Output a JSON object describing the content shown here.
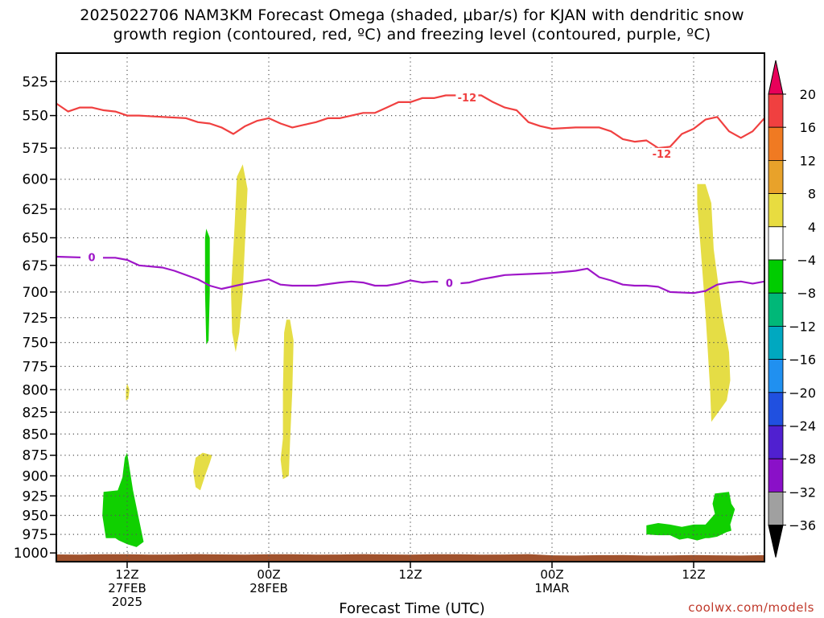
{
  "title_line1": "2025022706 NAM3KM Forecast Omega (shaded, μbar/s) for KJAN with dendritic snow",
  "title_line2": "growth region (contoured, red, ºC) and freezing level (contoured, purple, ºC)",
  "watermark": "coolwx.com/models",
  "chart_data": {
    "type": "time-height cross section",
    "xlabel": "Forecast Time (UTC)",
    "x_ticks": [
      {
        "hour": 6,
        "label": "12Z",
        "sub1": "27FEB",
        "sub2": "2025"
      },
      {
        "hour": 18,
        "label": "00Z",
        "sub1": "28FEB",
        "sub2": ""
      },
      {
        "hour": 30,
        "label": "12Z",
        "sub1": "",
        "sub2": ""
      },
      {
        "hour": 42,
        "label": "00Z",
        "sub1": "1MAR",
        "sub2": ""
      },
      {
        "hour": 54,
        "label": "12Z",
        "sub1": "",
        "sub2": ""
      }
    ],
    "xlim": [
      0,
      60
    ],
    "y_ticks": [
      525,
      550,
      575,
      600,
      625,
      650,
      675,
      700,
      725,
      750,
      775,
      800,
      825,
      850,
      875,
      900,
      925,
      950,
      975,
      1000
    ],
    "ylim_hPa": [
      505,
      1012
    ],
    "y_scale": "log-pressure",
    "grid": "dotted",
    "colorbar": {
      "labels": [
        "20",
        "16",
        "12",
        "8",
        "4",
        "−4",
        "−8",
        "−12",
        "−16",
        "−20",
        "−24",
        "−28",
        "−32",
        "−36"
      ],
      "colors": [
        "#e8005a",
        "#f04040",
        "#f07a22",
        "#e8a22a",
        "#e8dc40",
        "#ffffff",
        "#00cc00",
        "#00b878",
        "#00a8c0",
        "#2090f0",
        "#2050e0",
        "#5020d0",
        "#8a10c8",
        "#a0a0a0",
        "#000000"
      ]
    },
    "series": [
      {
        "name": "-12",
        "color": "#f04040",
        "labels": [
          {
            "t": 34.8,
            "p": 537
          },
          {
            "t": 51.3,
            "p": 580
          }
        ],
        "points": [
          [
            0,
            541
          ],
          [
            1,
            547
          ],
          [
            2,
            544
          ],
          [
            3,
            544
          ],
          [
            4,
            546
          ],
          [
            5,
            547
          ],
          [
            6,
            550
          ],
          [
            7,
            550
          ],
          [
            9,
            551
          ],
          [
            11,
            552
          ],
          [
            12,
            555
          ],
          [
            13,
            556
          ],
          [
            14,
            559
          ],
          [
            15,
            564
          ],
          [
            16,
            558
          ],
          [
            17,
            554
          ],
          [
            18,
            552
          ],
          [
            19,
            556
          ],
          [
            20,
            559
          ],
          [
            21,
            557
          ],
          [
            22,
            555
          ],
          [
            23,
            552
          ],
          [
            24,
            552
          ],
          [
            26,
            548
          ],
          [
            27,
            548
          ],
          [
            28,
            544
          ],
          [
            29,
            540
          ],
          [
            30,
            540
          ],
          [
            31,
            537
          ],
          [
            32,
            537
          ],
          [
            33,
            535
          ],
          [
            34,
            535
          ],
          [
            36,
            535
          ],
          [
            37,
            540
          ],
          [
            38,
            544
          ],
          [
            39,
            546
          ],
          [
            40,
            555
          ],
          [
            41,
            558
          ],
          [
            42,
            560
          ],
          [
            44,
            559
          ],
          [
            46,
            559
          ],
          [
            47,
            562
          ],
          [
            48,
            568
          ],
          [
            49,
            570
          ],
          [
            50,
            569
          ],
          [
            51,
            575
          ],
          [
            52,
            574
          ],
          [
            53,
            564
          ],
          [
            54,
            560
          ],
          [
            55,
            553
          ],
          [
            56,
            551
          ],
          [
            57,
            562
          ],
          [
            58,
            567
          ],
          [
            59,
            562
          ],
          [
            60,
            552
          ]
        ]
      },
      {
        "name": "0",
        "color": "#9e16c8",
        "labels": [
          {
            "t": 3.0,
            "p": 668
          },
          {
            "t": 33.3,
            "p": 692
          }
        ],
        "points": [
          [
            0,
            667
          ],
          [
            3,
            668
          ],
          [
            5,
            668
          ],
          [
            6,
            670
          ],
          [
            7,
            675
          ],
          [
            9,
            677
          ],
          [
            10,
            680
          ],
          [
            12,
            688
          ],
          [
            13,
            694
          ],
          [
            14,
            697
          ],
          [
            16,
            692
          ],
          [
            18,
            688
          ],
          [
            19,
            693
          ],
          [
            20,
            694
          ],
          [
            22,
            694
          ],
          [
            24,
            691
          ],
          [
            25,
            690
          ],
          [
            26,
            691
          ],
          [
            27,
            694
          ],
          [
            28,
            694
          ],
          [
            29,
            692
          ],
          [
            30,
            689
          ],
          [
            31,
            691
          ],
          [
            32,
            690
          ],
          [
            33,
            691
          ],
          [
            34,
            692
          ],
          [
            35,
            691
          ],
          [
            36,
            688
          ],
          [
            37,
            686
          ],
          [
            38,
            684
          ],
          [
            40,
            683
          ],
          [
            42,
            682
          ],
          [
            43,
            681
          ],
          [
            44,
            680
          ],
          [
            45,
            678
          ],
          [
            46,
            686
          ],
          [
            47,
            689
          ],
          [
            48,
            693
          ],
          [
            49,
            694
          ],
          [
            50,
            694
          ],
          [
            51,
            695
          ],
          [
            52,
            700
          ],
          [
            54,
            701
          ],
          [
            55,
            699
          ],
          [
            56,
            693
          ],
          [
            57,
            691
          ],
          [
            58,
            690
          ],
          [
            59,
            692
          ],
          [
            60,
            690
          ]
        ]
      }
    ],
    "shaded_regions": [
      {
        "value": "4",
        "color": "#e5dd45",
        "points": [
          [
            15.8,
            588
          ],
          [
            16.2,
            608
          ],
          [
            16.0,
            650
          ],
          [
            15.8,
            700
          ],
          [
            15.5,
            740
          ],
          [
            15.2,
            760
          ],
          [
            14.9,
            740
          ],
          [
            14.8,
            700
          ],
          [
            15.1,
            640
          ],
          [
            15.3,
            598
          ]
        ]
      },
      {
        "value": "4",
        "color": "#e5dd45",
        "points": [
          [
            19.8,
            727
          ],
          [
            20.1,
            748
          ],
          [
            20.0,
            800
          ],
          [
            19.8,
            860
          ],
          [
            19.7,
            900
          ],
          [
            19.2,
            904
          ],
          [
            19.0,
            880
          ],
          [
            19.2,
            855
          ],
          [
            19.2,
            800
          ],
          [
            19.3,
            740
          ],
          [
            19.5,
            727
          ]
        ]
      },
      {
        "value": "4",
        "color": "#e5dd45",
        "points": [
          [
            12.4,
            872
          ],
          [
            13.2,
            875
          ],
          [
            13.0,
            884
          ],
          [
            12.6,
            900
          ],
          [
            12.2,
            918
          ],
          [
            11.8,
            914
          ],
          [
            11.6,
            895
          ],
          [
            11.8,
            878
          ]
        ]
      },
      {
        "value": "4",
        "color": "#e5dd45",
        "points": [
          [
            6.0,
            793
          ],
          [
            6.2,
            800
          ],
          [
            6.1,
            810
          ],
          [
            5.9,
            812
          ],
          [
            5.9,
            800
          ]
        ]
      },
      {
        "value": "4",
        "color": "#e5dd45",
        "points": [
          [
            54.3,
            604
          ],
          [
            55.0,
            604
          ],
          [
            55.5,
            620
          ],
          [
            55.7,
            660
          ],
          [
            56.4,
            720
          ],
          [
            57.0,
            760
          ],
          [
            57.1,
            790
          ],
          [
            56.8,
            812
          ],
          [
            55.5,
            836
          ],
          [
            55.4,
            800
          ],
          [
            55.0,
            720
          ],
          [
            54.6,
            660
          ],
          [
            54.3,
            620
          ]
        ]
      },
      {
        "value": "-4",
        "color": "#10d000",
        "points": [
          [
            12.7,
            642
          ],
          [
            13.0,
            650
          ],
          [
            13.0,
            700
          ],
          [
            12.9,
            748
          ],
          [
            12.7,
            752
          ],
          [
            12.6,
            700
          ],
          [
            12.6,
            650
          ]
        ]
      },
      {
        "value": "-4",
        "color": "#10d000",
        "points": [
          [
            4.0,
            920
          ],
          [
            5.2,
            918
          ],
          [
            5.6,
            902
          ],
          [
            5.8,
            878
          ],
          [
            6.0,
            872
          ],
          [
            6.2,
            890
          ],
          [
            6.5,
            918
          ],
          [
            7.0,
            955
          ],
          [
            7.4,
            985
          ],
          [
            6.8,
            992
          ],
          [
            6.0,
            988
          ],
          [
            5.3,
            983
          ],
          [
            5.0,
            980
          ],
          [
            4.2,
            980
          ],
          [
            3.9,
            950
          ]
        ]
      },
      {
        "value": "-4",
        "color": "#10d000",
        "points": [
          [
            50.0,
            963
          ],
          [
            51.0,
            960
          ],
          [
            52.0,
            962
          ],
          [
            53.0,
            965
          ],
          [
            54.0,
            962
          ],
          [
            55.0,
            962
          ],
          [
            55.8,
            948
          ],
          [
            55.6,
            935
          ],
          [
            55.8,
            922
          ],
          [
            57.0,
            920
          ],
          [
            57.2,
            935
          ],
          [
            57.5,
            942
          ],
          [
            57.3,
            952
          ],
          [
            57.1,
            962
          ],
          [
            57.2,
            970
          ],
          [
            56.8,
            972
          ],
          [
            56.0,
            978
          ],
          [
            55.3,
            980
          ],
          [
            55.0,
            980
          ],
          [
            54.3,
            983
          ],
          [
            53.5,
            980
          ],
          [
            52.8,
            982
          ],
          [
            52.0,
            976
          ],
          [
            51.0,
            976
          ],
          [
            50.0,
            975
          ]
        ]
      }
    ],
    "terrain": {
      "color": "#a0522d"
    }
  }
}
